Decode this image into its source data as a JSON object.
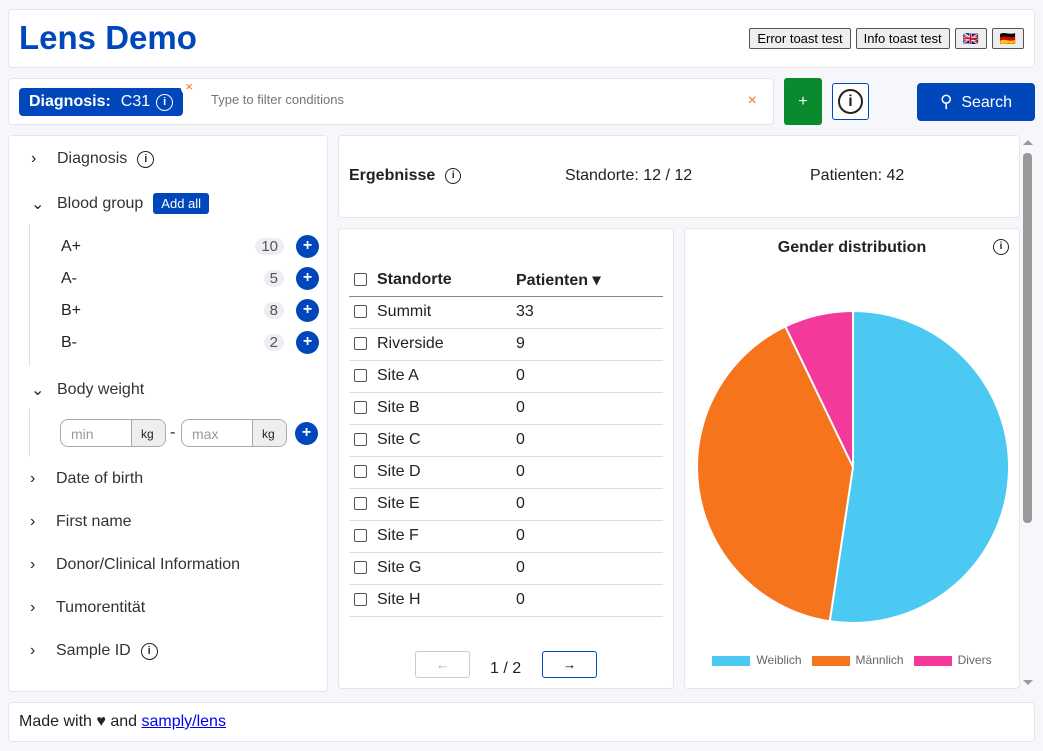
{
  "header": {
    "title": "Lens Demo",
    "buttons": [
      "Error toast test",
      "Info toast test",
      "🇬🇧",
      "🇩🇪"
    ]
  },
  "searchbar": {
    "chip_label": "Diagnosis:",
    "chip_value": "C31",
    "placeholder": "Type to filter conditions",
    "add": "+",
    "search": "Search"
  },
  "sidebar": {
    "categories": [
      {
        "label": "Diagnosis"
      },
      {
        "label": "Blood group",
        "add_all": "Add all",
        "values": [
          {
            "label": "A+",
            "count": "10"
          },
          {
            "label": "A-",
            "count": "5"
          },
          {
            "label": "B+",
            "count": "8"
          },
          {
            "label": "B-",
            "count": "2"
          }
        ]
      },
      {
        "label": "Body weight",
        "min": "min",
        "max": "max",
        "unit": "kg",
        "sep": "-"
      },
      {
        "label": "Date of birth"
      },
      {
        "label": "First name"
      },
      {
        "label": "Donor/Clinical Information"
      },
      {
        "label": "Tumorentität"
      },
      {
        "label": "Sample ID"
      }
    ]
  },
  "results": {
    "title": "Ergebnisse",
    "sites": "Standorte: 12 / 12",
    "patients": "Patienten: 42"
  },
  "table": {
    "headers": [
      "Standorte",
      "Patienten ▾"
    ],
    "rows": [
      [
        "Summit",
        "33"
      ],
      [
        "Riverside",
        "9"
      ],
      [
        "Site A",
        "0"
      ],
      [
        "Site B",
        "0"
      ],
      [
        "Site C",
        "0"
      ],
      [
        "Site D",
        "0"
      ],
      [
        "Site E",
        "0"
      ],
      [
        "Site F",
        "0"
      ],
      [
        "Site G",
        "0"
      ],
      [
        "Site H",
        "0"
      ]
    ],
    "prev": "←",
    "next": "→",
    "page": "1 / 2"
  },
  "chart_data": {
    "type": "pie",
    "title": "Gender distribution",
    "categories": [
      "Weiblich",
      "Männlich",
      "Divers"
    ],
    "values": [
      22,
      17,
      3
    ],
    "colors": [
      "#4bc9f3",
      "#f6741b",
      "#f3399a"
    ],
    "legend": "bottom"
  },
  "footer": {
    "text": "Made with ♥ and",
    "link": "samply/lens"
  }
}
